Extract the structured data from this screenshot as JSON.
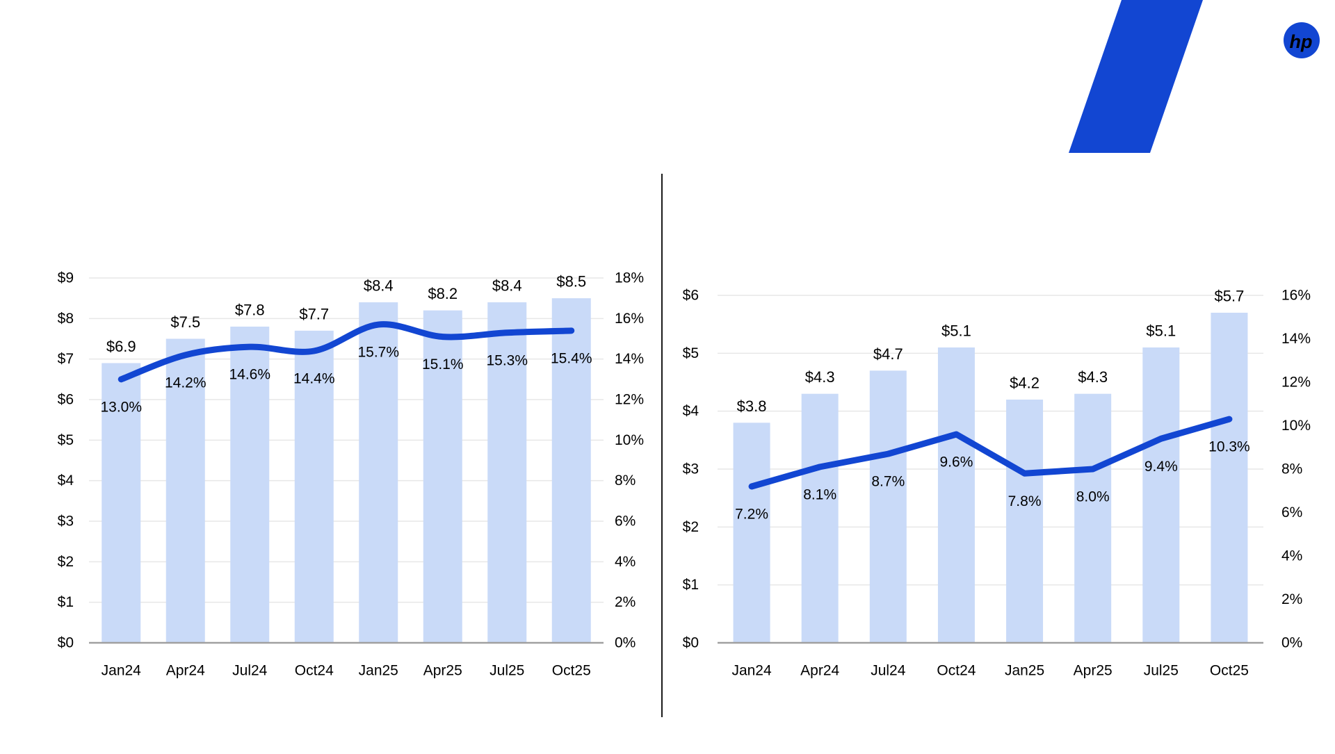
{
  "brand": {
    "logo_text": "hp",
    "accent_blue": "#1246D2",
    "line_blue": "#1246D2",
    "bar_fill": "#C9DAF8",
    "grid_color": "#E7E7E7",
    "axis_color": "#A0A0A0",
    "divider_color": "#1a1a1a",
    "text_color": "#000000"
  },
  "chart_data": [
    {
      "id": "left",
      "type": "bar+line",
      "title": "",
      "categories": [
        "Jan24",
        "Apr24",
        "Jul24",
        "Oct24",
        "Jan25",
        "Apr25",
        "Jul25",
        "Oct25"
      ],
      "series": [
        {
          "name": "dollar-bars",
          "type": "bar",
          "values": [
            6.9,
            7.5,
            7.8,
            7.7,
            8.4,
            8.2,
            8.4,
            8.5
          ],
          "labels": [
            "$6.9",
            "$7.5",
            "$7.8",
            "$7.7",
            "$8.4",
            "$8.2",
            "$8.4",
            "$8.5"
          ]
        },
        {
          "name": "percent-line",
          "type": "line",
          "values": [
            13.0,
            14.2,
            14.6,
            14.4,
            15.7,
            15.1,
            15.3,
            15.4
          ],
          "labels": [
            "13.0%",
            "14.2%",
            "14.6%",
            "14.4%",
            "15.7%",
            "15.1%",
            "15.3%",
            "15.4%"
          ]
        }
      ],
      "y_left": {
        "min": 0,
        "max": 9,
        "step": 1,
        "tick_labels": [
          "$0",
          "$1",
          "$2",
          "$3",
          "$4",
          "$5",
          "$6",
          "$7",
          "$8",
          "$9"
        ]
      },
      "y_right": {
        "min": 0,
        "max": 18,
        "step": 2,
        "tick_labels": [
          "0%",
          "2%",
          "4%",
          "6%",
          "8%",
          "10%",
          "12%",
          "14%",
          "16%",
          "18%"
        ]
      },
      "grid": true,
      "legend": "none",
      "smooth_line": true
    },
    {
      "id": "right",
      "type": "bar+line",
      "title": "",
      "categories": [
        "Jan24",
        "Apr24",
        "Jul24",
        "Oct24",
        "Jan25",
        "Apr25",
        "Jul25",
        "Oct25"
      ],
      "series": [
        {
          "name": "dollar-bars",
          "type": "bar",
          "values": [
            3.8,
            4.3,
            4.7,
            5.1,
            4.2,
            4.3,
            5.1,
            5.7
          ],
          "labels": [
            "$3.8",
            "$4.3",
            "$4.7",
            "$5.1",
            "$4.2",
            "$4.3",
            "$5.1",
            "$5.7"
          ]
        },
        {
          "name": "percent-line",
          "type": "line",
          "values": [
            7.2,
            8.1,
            8.7,
            9.6,
            7.8,
            8.0,
            9.4,
            10.3
          ],
          "labels": [
            "7.2%",
            "8.1%",
            "8.7%",
            "9.6%",
            "7.8%",
            "8.0%",
            "9.4%",
            "10.3%"
          ]
        }
      ],
      "y_left": {
        "min": 0,
        "max": 6,
        "step": 1,
        "tick_labels": [
          "$0",
          "$1",
          "$2",
          "$3",
          "$4",
          "$5",
          "$6"
        ]
      },
      "y_right": {
        "min": 0,
        "max": 16,
        "step": 2,
        "tick_labels": [
          "0%",
          "2%",
          "4%",
          "6%",
          "8%",
          "10%",
          "12%",
          "14%",
          "16%"
        ]
      },
      "grid": true,
      "legend": "none",
      "smooth_line": false
    }
  ]
}
